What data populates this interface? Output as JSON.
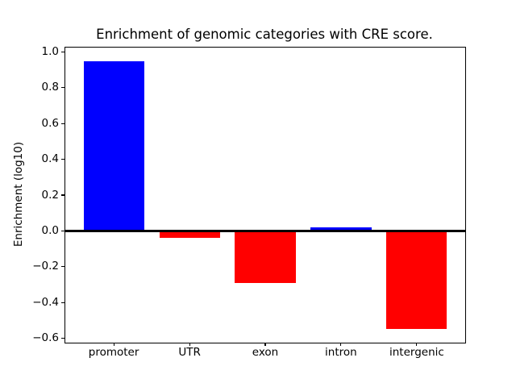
{
  "figure": {
    "background": "#ffffff"
  },
  "chart_data": {
    "type": "bar",
    "title": "Enrichment of genomic categories with CRE score.",
    "ylabel": "Enrichment (log10)",
    "xlabel": "",
    "categories": [
      "promoter",
      "UTR",
      "exon",
      "intron",
      "intergenic"
    ],
    "values": [
      0.95,
      -0.04,
      -0.29,
      0.02,
      -0.55
    ],
    "bar_colors": [
      "#0000ff",
      "#ff0000",
      "#ff0000",
      "#0000ff",
      "#ff0000"
    ],
    "positive_color": "#0000ff",
    "negative_color": "#ff0000",
    "yticks": [
      1.0,
      0.8,
      0.6,
      0.4,
      0.2,
      0.0,
      -0.2,
      -0.4,
      -0.6
    ],
    "ylim": [
      -0.625,
      1.025
    ],
    "bar_width_fraction": 0.8,
    "grid": false,
    "zero_line": true,
    "zero_line_color": "#000000",
    "axis_color": "#000000",
    "text_color": "#000000"
  }
}
